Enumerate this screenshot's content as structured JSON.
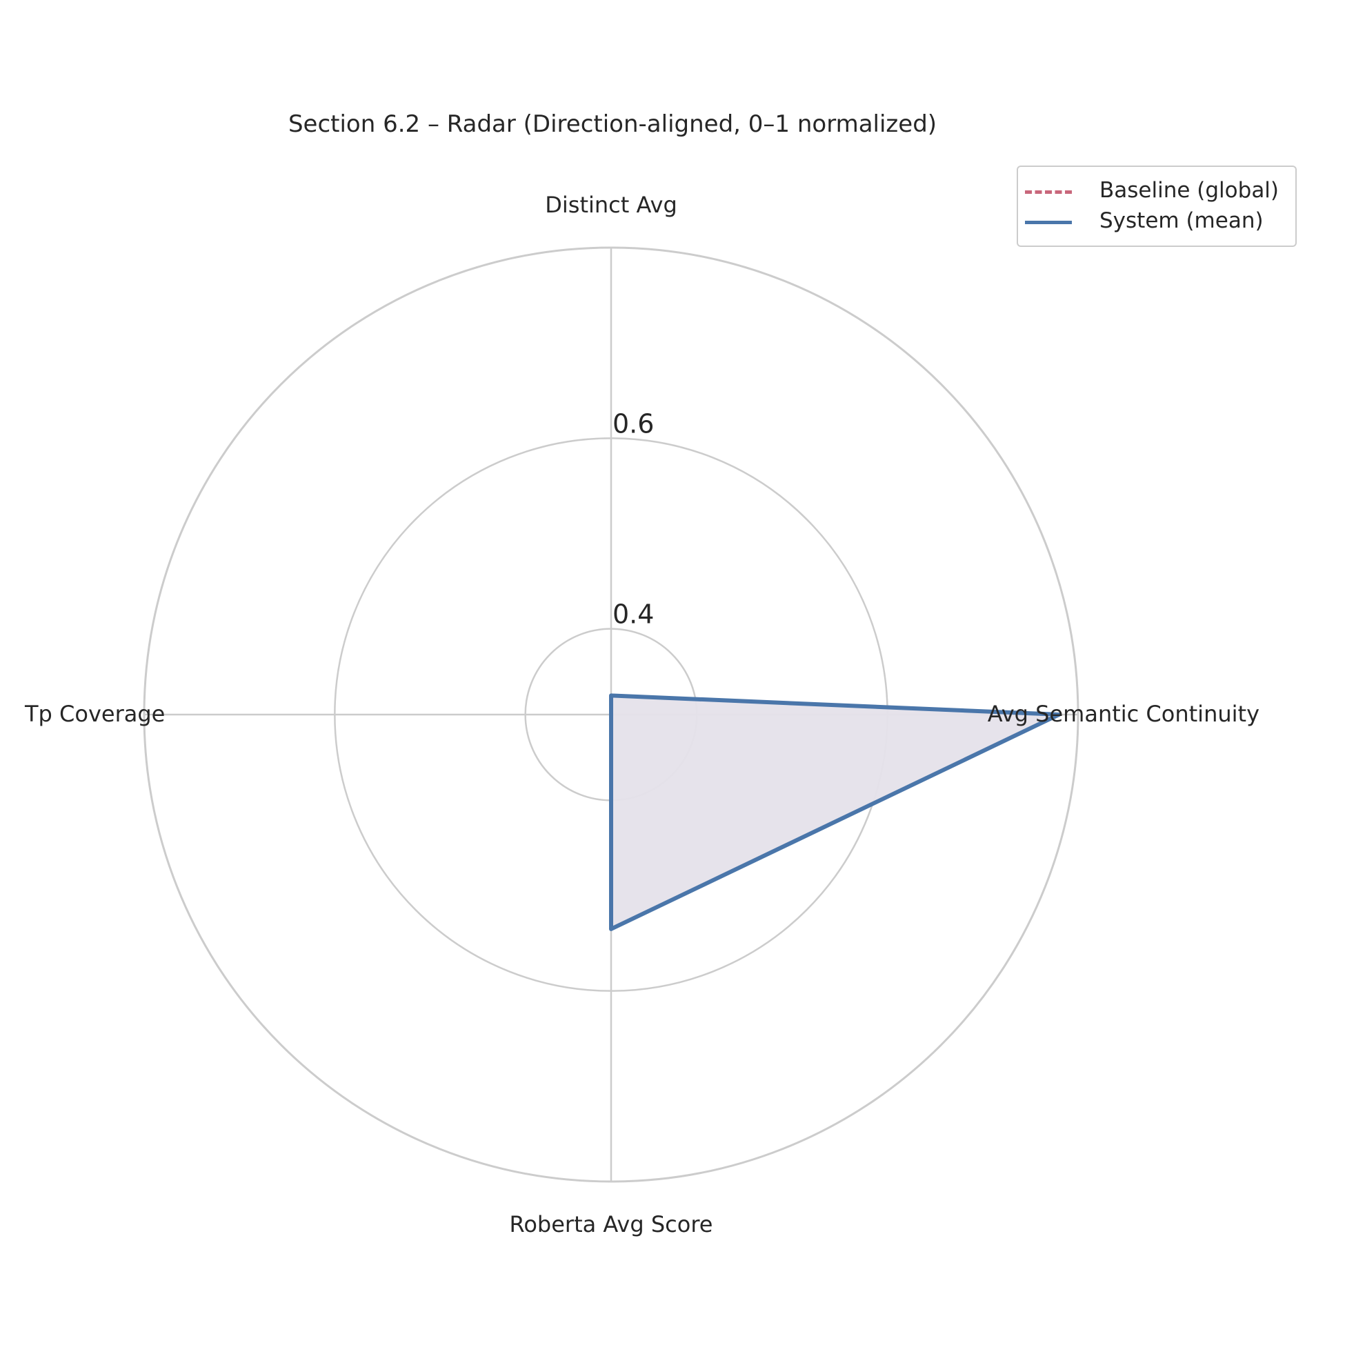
{
  "chart_data": {
    "type": "radar",
    "title": "Section 6.2 – Radar (Direction-aligned, 0–1 normalized)",
    "axes": [
      "Distinct Avg",
      "Avg Semantic Continuity",
      "Roberta Avg Score",
      "Tp Coverage"
    ],
    "radial_ticks": [
      "0.4",
      "0.6"
    ],
    "r_range": [
      0.31,
      0.8
    ],
    "grid": true,
    "legend_position": "top-right",
    "series": [
      {
        "name": "Baseline (global)",
        "style": "dashed",
        "color": "#c8677b",
        "values": [
          0.31,
          0.31,
          0.31,
          0.31
        ]
      },
      {
        "name": "System (mean)",
        "style": "solid",
        "color": "#4a76aa",
        "fill": "#e5e1ea",
        "values": [
          0.33,
          0.78,
          0.535,
          0.31
        ]
      }
    ]
  }
}
